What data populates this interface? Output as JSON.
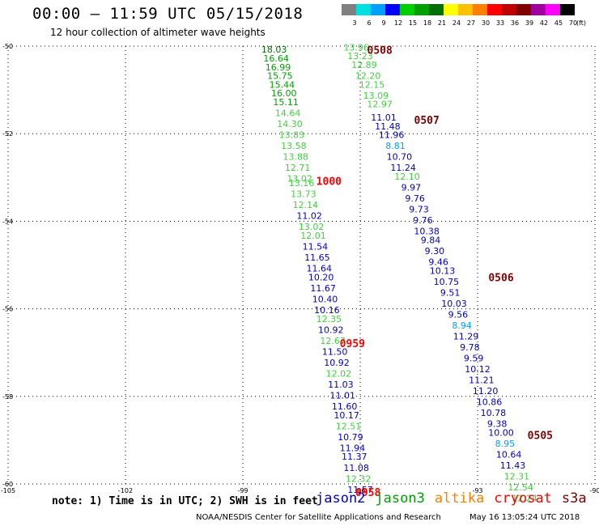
{
  "header": {
    "title": "00:00 – 11:59 UTC 05/15/2018",
    "subtitle": "12 hour collection of altimeter wave heights"
  },
  "colorbar": {
    "labels": [
      "3",
      "6",
      "9",
      "12",
      "15",
      "18",
      "21",
      "24",
      "27",
      "30",
      "33",
      "36",
      "39",
      "42",
      "45",
      "70"
    ],
    "unit": "(ft)",
    "colors": [
      "#808080",
      "#00e0e0",
      "#00a0ff",
      "#0000ff",
      "#00d000",
      "#00a000",
      "#007000",
      "#ffff00",
      "#ffc000",
      "#ff8000",
      "#ff0000",
      "#c00000",
      "#800000",
      "#a000a0",
      "#ff00ff",
      "#000000"
    ]
  },
  "footer": {
    "note": "note: 1) Time is in UTC; 2) SWH is in feet",
    "credit": "NOAA/NESDIS Center for Satellite Applications and Research",
    "timestamp": "May 16 13:05:24 UTC 2018"
  },
  "legend": [
    {
      "label": "jason2",
      "color": "#0000cc"
    },
    {
      "label": "jason3",
      "color": "#00a000"
    },
    {
      "label": "altika",
      "color": "#ff8000"
    },
    {
      "label": "cryosat",
      "color": "#ff0000"
    },
    {
      "label": "s3a",
      "color": "#800000"
    }
  ],
  "chart_data": {
    "type": "scatter",
    "xlim": [
      -105,
      -90
    ],
    "ylim": [
      -60,
      -50
    ],
    "x_ticks": [
      -105,
      -102,
      -99,
      -96,
      -93,
      -90
    ],
    "x_tick_labels": [
      "-105",
      "-102",
      "-99",
      "-96",
      "-93",
      "-90"
    ],
    "y_ticks": [
      -50,
      -52,
      -54,
      -56,
      -58,
      -60
    ],
    "y_tick_labels": [
      "-50",
      "-52",
      "-54",
      "-56",
      "-58",
      "-60"
    ],
    "grid": true,
    "series": [
      {
        "name": "jason3",
        "color_key": "jason3",
        "points": [
          {
            "x": -98.2,
            "y": -50.15,
            "v": "18.03",
            "c": "#007000"
          },
          {
            "x": -98.15,
            "y": -50.35,
            "v": "16.64",
            "c": "#00a000"
          },
          {
            "x": -98.1,
            "y": -50.55,
            "v": "16.99",
            "c": "#00a000"
          },
          {
            "x": -98.05,
            "y": -50.75,
            "v": "15.75",
            "c": "#00a000"
          },
          {
            "x": -98.0,
            "y": -50.95,
            "v": "15.44",
            "c": "#00a000"
          },
          {
            "x": -97.95,
            "y": -51.15,
            "v": "16.00",
            "c": "#00a000"
          },
          {
            "x": -97.9,
            "y": -51.35,
            "v": "15.11",
            "c": "#00a000"
          },
          {
            "x": -97.85,
            "y": -51.6,
            "v": "14.64",
            "c": "#40d040"
          },
          {
            "x": -97.8,
            "y": -51.85,
            "v": "14.30",
            "c": "#40d040"
          },
          {
            "x": -97.75,
            "y": -52.1,
            "v": "13.83",
            "c": "#40d040"
          },
          {
            "x": -97.7,
            "y": -52.35,
            "v": "13.58",
            "c": "#40d040"
          },
          {
            "x": -97.65,
            "y": -52.6,
            "v": "13.88",
            "c": "#40d040"
          },
          {
            "x": -97.6,
            "y": -52.85,
            "v": "12.71",
            "c": "#40d040"
          },
          {
            "x": -97.55,
            "y": -53.1,
            "v": "13.02",
            "c": "#40d040"
          },
          {
            "x": -97.5,
            "y": -53.2,
            "v": "13.16",
            "c": "#40d040"
          },
          {
            "x": -97.45,
            "y": -53.45,
            "v": "13.73",
            "c": "#40d040"
          },
          {
            "x": -97.4,
            "y": -53.7,
            "v": "12.14",
            "c": "#40d040"
          },
          {
            "x": -97.3,
            "y": -53.95,
            "v": "11.02",
            "c": "#0000cc"
          },
          {
            "x": -97.25,
            "y": -54.2,
            "v": "13.02",
            "c": "#40d040"
          },
          {
            "x": -97.2,
            "y": -54.4,
            "v": "12.01",
            "c": "#40d040"
          },
          {
            "x": -97.15,
            "y": -54.65,
            "v": "11.54",
            "c": "#0000cc"
          },
          {
            "x": -97.1,
            "y": -54.9,
            "v": "11.65",
            "c": "#0000cc"
          },
          {
            "x": -97.05,
            "y": -55.15,
            "v": "11.64",
            "c": "#0000cc"
          },
          {
            "x": -97.0,
            "y": -55.35,
            "v": "10.20",
            "c": "#0000cc"
          },
          {
            "x": -96.95,
            "y": -55.6,
            "v": "11.67",
            "c": "#0000cc"
          },
          {
            "x": -96.9,
            "y": -55.85,
            "v": "10.40",
            "c": "#0000cc"
          },
          {
            "x": -96.85,
            "y": -56.1,
            "v": "10.16",
            "c": "#0000cc"
          },
          {
            "x": -96.8,
            "y": -56.3,
            "v": "12.35",
            "c": "#40d040"
          },
          {
            "x": -96.75,
            "y": -56.55,
            "v": "10.92",
            "c": "#0000cc"
          },
          {
            "x": -96.7,
            "y": -56.8,
            "v": "12.67",
            "c": "#40d040"
          },
          {
            "x": -96.65,
            "y": -57.05,
            "v": "11.50",
            "c": "#0000cc"
          },
          {
            "x": -96.6,
            "y": -57.3,
            "v": "10.92",
            "c": "#0000cc"
          },
          {
            "x": -96.55,
            "y": -57.55,
            "v": "12.02",
            "c": "#40d040"
          },
          {
            "x": -96.5,
            "y": -57.8,
            "v": "11.03",
            "c": "#0000cc"
          },
          {
            "x": -96.45,
            "y": -58.05,
            "v": "11.01",
            "c": "#0000cc"
          },
          {
            "x": -96.4,
            "y": -58.3,
            "v": "11.60",
            "c": "#0000cc"
          },
          {
            "x": -96.35,
            "y": -58.5,
            "v": "10.17",
            "c": "#0000cc"
          },
          {
            "x": -96.3,
            "y": -58.75,
            "v": "12.51",
            "c": "#40d040"
          },
          {
            "x": -96.25,
            "y": -59.0,
            "v": "10.79",
            "c": "#0000cc"
          },
          {
            "x": -96.2,
            "y": -59.25,
            "v": "11.94",
            "c": "#0000cc"
          },
          {
            "x": -96.15,
            "y": -59.45,
            "v": "11.37",
            "c": "#0000cc"
          },
          {
            "x": -96.1,
            "y": -59.7,
            "v": "11.08",
            "c": "#0000cc"
          },
          {
            "x": -96.05,
            "y": -59.95,
            "v": "12.32",
            "c": "#40d040"
          },
          {
            "x": -96.0,
            "y": -60.2,
            "v": "11.57",
            "c": "#0000cc"
          }
        ]
      },
      {
        "name": "s3a",
        "color_key": "s3a",
        "points": [
          {
            "x": -96.1,
            "y": -50.1,
            "v": "13.96",
            "c": "#40d040"
          },
          {
            "x": -96.0,
            "y": -50.3,
            "v": "13.23",
            "c": "#40d040"
          },
          {
            "x": -95.9,
            "y": -50.5,
            "v": "12.89",
            "c": "#40d040"
          },
          {
            "x": -95.8,
            "y": -50.75,
            "v": "12.20",
            "c": "#40d040"
          },
          {
            "x": -95.7,
            "y": -50.95,
            "v": "12.15",
            "c": "#40d040"
          },
          {
            "x": -95.6,
            "y": -51.2,
            "v": "13.09",
            "c": "#40d040"
          },
          {
            "x": -95.5,
            "y": -51.4,
            "v": "12.97",
            "c": "#40d040"
          },
          {
            "x": -95.4,
            "y": -51.7,
            "v": "11.01",
            "c": "#0000cc"
          },
          {
            "x": -95.3,
            "y": -51.9,
            "v": "11.48",
            "c": "#0000cc"
          },
          {
            "x": -95.2,
            "y": -52.1,
            "v": "11.96",
            "c": "#0000cc"
          },
          {
            "x": -95.1,
            "y": -52.35,
            "v": "8.81",
            "c": "#00a0ff"
          },
          {
            "x": -95.0,
            "y": -52.6,
            "v": "10.70",
            "c": "#0000cc"
          },
          {
            "x": -94.9,
            "y": -52.85,
            "v": "11.24",
            "c": "#0000cc"
          },
          {
            "x": -94.8,
            "y": -53.05,
            "v": "12.10",
            "c": "#40d040"
          },
          {
            "x": -94.7,
            "y": -53.3,
            "v": "9.97",
            "c": "#0000cc"
          },
          {
            "x": -94.6,
            "y": -53.55,
            "v": "9.76",
            "c": "#0000cc"
          },
          {
            "x": -94.5,
            "y": -53.8,
            "v": "9.73",
            "c": "#0000cc"
          },
          {
            "x": -94.4,
            "y": -54.05,
            "v": "9.76",
            "c": "#0000cc"
          },
          {
            "x": -94.3,
            "y": -54.3,
            "v": "10.38",
            "c": "#0000cc"
          },
          {
            "x": -94.2,
            "y": -54.5,
            "v": "9.84",
            "c": "#0000cc"
          },
          {
            "x": -94.1,
            "y": -54.75,
            "v": "9.30",
            "c": "#0000cc"
          },
          {
            "x": -94.0,
            "y": -55.0,
            "v": "9.46",
            "c": "#0000cc"
          },
          {
            "x": -93.9,
            "y": -55.2,
            "v": "10.13",
            "c": "#0000cc"
          },
          {
            "x": -93.8,
            "y": -55.45,
            "v": "10.75",
            "c": "#0000cc"
          },
          {
            "x": -93.7,
            "y": -55.7,
            "v": "9.51",
            "c": "#0000cc"
          },
          {
            "x": -93.6,
            "y": -55.95,
            "v": "10.03",
            "c": "#0000cc"
          },
          {
            "x": -93.5,
            "y": -56.2,
            "v": "9.56",
            "c": "#0000cc"
          },
          {
            "x": -93.4,
            "y": -56.45,
            "v": "8.94",
            "c": "#00a0ff"
          },
          {
            "x": -93.3,
            "y": -56.7,
            "v": "11.29",
            "c": "#0000cc"
          },
          {
            "x": -93.2,
            "y": -56.95,
            "v": "9.78",
            "c": "#0000cc"
          },
          {
            "x": -93.1,
            "y": -57.2,
            "v": "9.59",
            "c": "#0000cc"
          },
          {
            "x": -93.0,
            "y": -57.45,
            "v": "10.12",
            "c": "#0000cc"
          },
          {
            "x": -92.9,
            "y": -57.7,
            "v": "11.21",
            "c": "#0000cc"
          },
          {
            "x": -92.8,
            "y": -57.95,
            "v": "11.20",
            "c": "#0000cc"
          },
          {
            "x": -92.7,
            "y": -58.2,
            "v": "10.86",
            "c": "#0000cc"
          },
          {
            "x": -92.6,
            "y": -58.45,
            "v": "10.78",
            "c": "#0000cc"
          },
          {
            "x": -92.5,
            "y": -58.7,
            "v": "9.38",
            "c": "#0000cc"
          },
          {
            "x": -92.4,
            "y": -58.9,
            "v": "10.00",
            "c": "#0000cc"
          },
          {
            "x": -92.3,
            "y": -59.15,
            "v": "8.95",
            "c": "#00a0ff"
          },
          {
            "x": -92.2,
            "y": -59.4,
            "v": "10.64",
            "c": "#0000cc"
          },
          {
            "x": -92.1,
            "y": -59.65,
            "v": "11.43",
            "c": "#0000cc"
          },
          {
            "x": -92.0,
            "y": -59.9,
            "v": "12.31",
            "c": "#40d040"
          },
          {
            "x": -91.9,
            "y": -60.15,
            "v": "12.54",
            "c": "#40d040"
          },
          {
            "x": -91.8,
            "y": -60.4,
            "v": "12.24",
            "c": "#40d040"
          }
        ]
      }
    ],
    "time_labels": [
      {
        "x": -95.5,
        "y": -50.1,
        "text": "0508",
        "color": "#800000"
      },
      {
        "x": -94.3,
        "y": -51.7,
        "text": "0507",
        "color": "#800000"
      },
      {
        "x": -96.8,
        "y": -53.1,
        "text": "1000",
        "color": "#ff0000"
      },
      {
        "x": -92.4,
        "y": -55.3,
        "text": "0506",
        "color": "#800000"
      },
      {
        "x": -96.2,
        "y": -56.8,
        "text": "0959",
        "color": "#ff0000"
      },
      {
        "x": -91.4,
        "y": -58.9,
        "text": "0505",
        "color": "#800000"
      },
      {
        "x": -95.8,
        "y": -60.2,
        "text": "0958",
        "color": "#ff0000"
      }
    ]
  }
}
